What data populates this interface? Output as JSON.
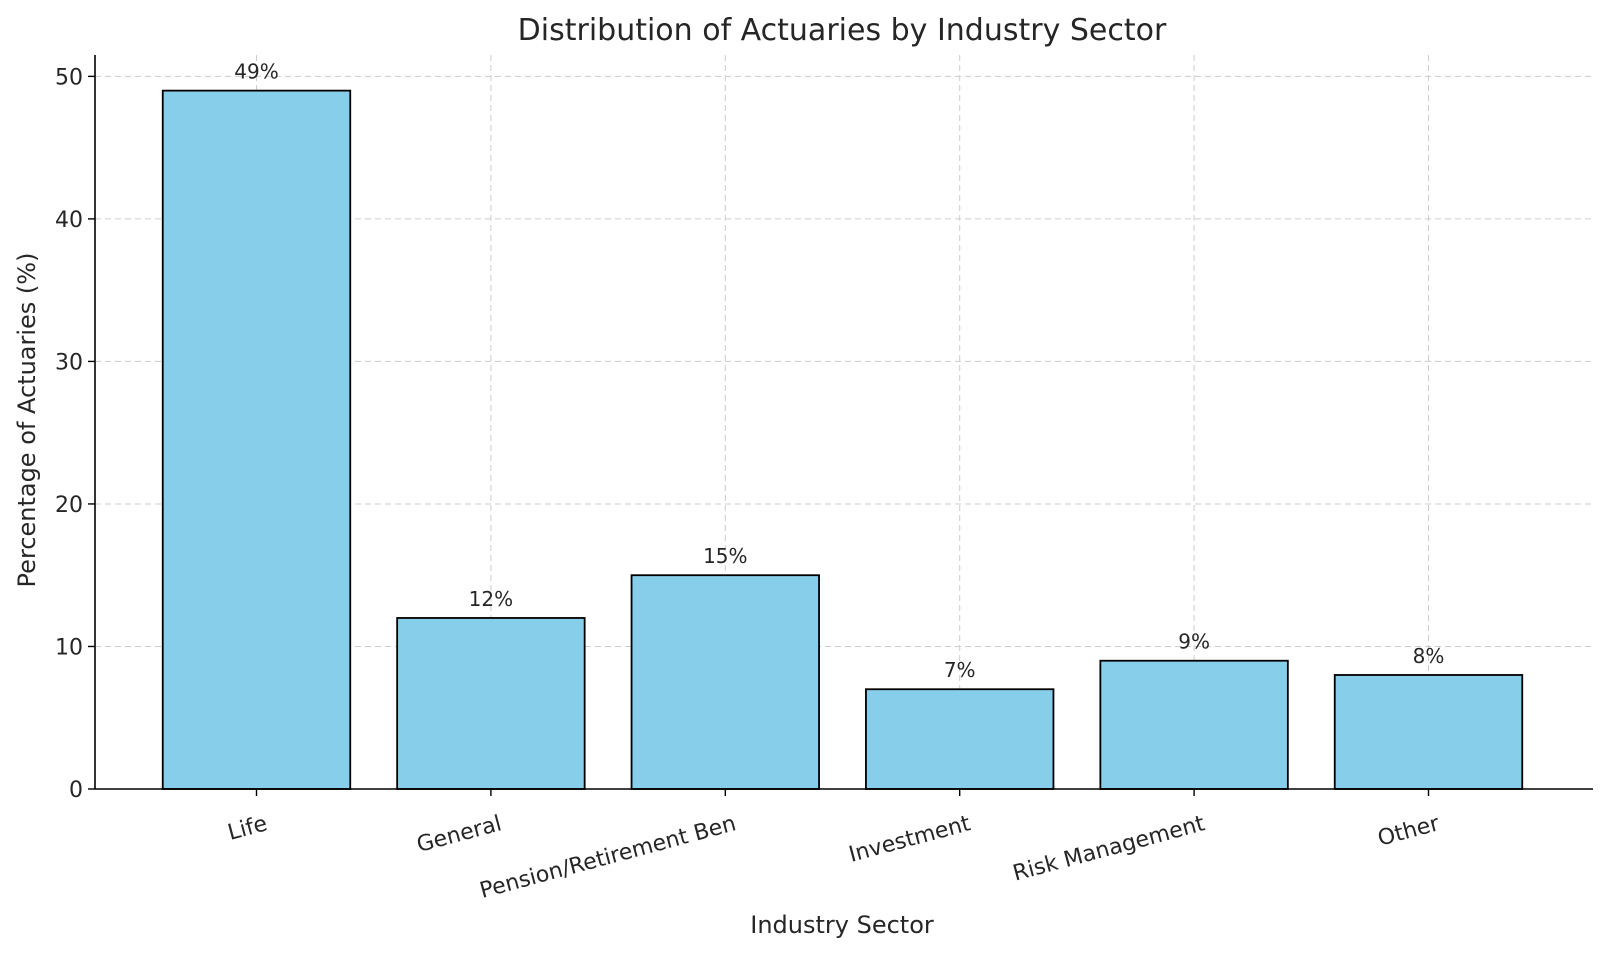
{
  "chart_data": {
    "type": "bar",
    "title": "Distribution of Actuaries by Industry Sector",
    "xlabel": "Industry Sector",
    "ylabel": "Percentage of Actuaries (%)",
    "categories": [
      "Life",
      "General",
      "Pension/Retirement Ben",
      "Investment",
      "Risk Management",
      "Other"
    ],
    "values": [
      49,
      12,
      15,
      7,
      9,
      8
    ],
    "value_labels": [
      "49%",
      "12%",
      "15%",
      "7%",
      "9%",
      "8%"
    ],
    "ylim": [
      0,
      51.5
    ],
    "yticks": [
      0,
      10,
      20,
      30,
      40,
      50
    ],
    "ytick_labels": [
      "0",
      "10",
      "20",
      "30",
      "40",
      "50"
    ],
    "grid": true,
    "colors": {
      "bar_fill": "#87CEEB",
      "bar_edge": "#000000"
    }
  }
}
